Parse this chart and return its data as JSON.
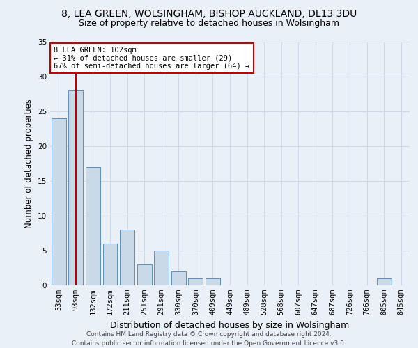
{
  "title1": "8, LEA GREEN, WOLSINGHAM, BISHOP AUCKLAND, DL13 3DU",
  "title2": "Size of property relative to detached houses in Wolsingham",
  "xlabel": "Distribution of detached houses by size in Wolsingham",
  "ylabel": "Number of detached properties",
  "footer1": "Contains HM Land Registry data © Crown copyright and database right 2024.",
  "footer2": "Contains public sector information licensed under the Open Government Licence v3.0.",
  "bin_labels": [
    "53sqm",
    "93sqm",
    "132sqm",
    "172sqm",
    "211sqm",
    "251sqm",
    "291sqm",
    "330sqm",
    "370sqm",
    "409sqm",
    "449sqm",
    "489sqm",
    "528sqm",
    "568sqm",
    "607sqm",
    "647sqm",
    "687sqm",
    "726sqm",
    "766sqm",
    "805sqm",
    "845sqm"
  ],
  "bar_values": [
    24,
    28,
    17,
    6,
    8,
    3,
    5,
    2,
    1,
    1,
    0,
    0,
    0,
    0,
    0,
    0,
    0,
    0,
    0,
    1,
    0
  ],
  "bar_color": "#c9d9e8",
  "bar_edge_color": "#5a8fc0",
  "vline_x_index": 1,
  "vline_color": "#c00000",
  "annotation_text": "8 LEA GREEN: 102sqm\n← 31% of detached houses are smaller (29)\n67% of semi-detached houses are larger (64) →",
  "annotation_box_color": "white",
  "annotation_box_edge_color": "#c00000",
  "ylim": [
    0,
    35
  ],
  "yticks": [
    0,
    5,
    10,
    15,
    20,
    25,
    30,
    35
  ],
  "grid_color": "#d0d8e8",
  "background_color": "#eaf0f8",
  "title_fontsize": 10,
  "subtitle_fontsize": 9,
  "tick_fontsize": 7.5,
  "ylabel_fontsize": 8.5,
  "xlabel_fontsize": 9,
  "footer_fontsize": 6.5
}
